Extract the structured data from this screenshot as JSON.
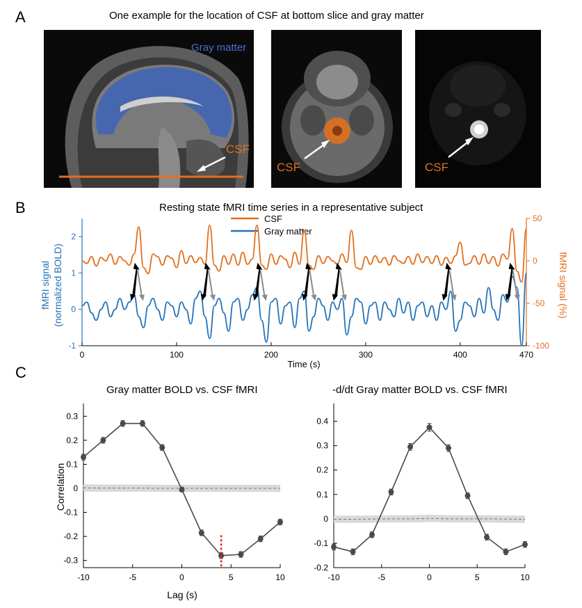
{
  "panelA": {
    "letter": "A",
    "title": "One example for the location of CSF at bottom slice and gray matter",
    "label_gray_matter": "Gray matter",
    "label_csf_sag": "CSF",
    "label_csf_axial": "CSF",
    "label_csf_func": "CSF",
    "colors": {
      "gray_matter": "#3d63b8",
      "csf": "#e0701f"
    }
  },
  "panelB": {
    "letter": "B",
    "title": "Resting state fMRI time series in a representative subject",
    "legend": [
      "CSF",
      "Gray matter"
    ],
    "xlabel": "Time (s)",
    "ylabel_left_1": "fMRI signal",
    "ylabel_left_2": "(normalized BOLD)",
    "ylabel_right": "fMRI signal (%)",
    "left_ticks": [
      "2",
      "1",
      "0",
      "-1"
    ],
    "right_ticks": [
      "50",
      "0",
      "-50",
      "-100"
    ],
    "x_ticks": [
      "0",
      "100",
      "200",
      "300",
      "400",
      "470"
    ],
    "colors": {
      "csf": "#e0701f",
      "gray_matter": "#2372b8"
    }
  },
  "panelC": {
    "letter": "C",
    "left_title": "Gray matter BOLD vs. CSF fMRI",
    "right_title": "-d/dt Gray matter BOLD vs. CSF fMRI",
    "ylabel": "Correlation",
    "xlabel": "Lag (s)",
    "left_y_ticks": [
      "0.3",
      "0.2",
      "0.1",
      "0",
      "-0.1",
      "-0.2",
      "-0.3"
    ],
    "right_y_ticks": [
      "0.4",
      "0.3",
      "0.2",
      "0.1",
      "0",
      "-0.1",
      "-0.2"
    ],
    "x_ticks": [
      "-10",
      "-5",
      "0",
      "5",
      "10"
    ]
  },
  "chart_data": [
    {
      "type": "line",
      "title": "Resting state fMRI time series in a representative subject",
      "xlabel": "Time (s)",
      "ylabel": "fMRI signal (normalized BOLD)",
      "xlim": [
        0,
        470
      ],
      "ylim": [
        -1,
        2.5
      ],
      "y2label": "fMRI signal (%)",
      "y2lim": [
        -100,
        50
      ],
      "series": [
        {
          "name": "CSF",
          "axis": "right",
          "x": [
            0,
            5,
            10,
            15,
            20,
            25,
            30,
            35,
            40,
            45,
            50,
            55,
            60,
            65,
            70,
            75,
            80,
            85,
            90,
            95,
            100,
            105,
            110,
            115,
            120,
            125,
            130,
            135,
            140,
            145,
            150,
            155,
            160,
            165,
            170,
            175,
            180,
            185,
            190,
            195,
            200,
            205,
            210,
            215,
            220,
            225,
            230,
            235,
            240,
            245,
            250,
            255,
            260,
            265,
            270,
            275,
            280,
            285,
            290,
            295,
            300,
            305,
            310,
            315,
            320,
            325,
            330,
            335,
            340,
            345,
            350,
            355,
            360,
            365,
            370,
            375,
            380,
            385,
            390,
            395,
            400,
            405,
            410,
            415,
            420,
            425,
            430,
            435,
            440,
            445,
            450,
            455,
            460,
            465,
            470
          ],
          "values": [
            0,
            -3,
            5,
            -6,
            4,
            0,
            8,
            -4,
            5,
            0,
            -5,
            8,
            40,
            -8,
            -15,
            8,
            5,
            -5,
            6,
            3,
            -8,
            12,
            -3,
            6,
            -2,
            4,
            -4,
            42,
            -5,
            -12,
            6,
            -4,
            8,
            -5,
            10,
            -4,
            2,
            42,
            -5,
            -10,
            8,
            -4,
            6,
            2,
            -8,
            10,
            -4,
            36,
            -5,
            -10,
            6,
            -3,
            5,
            0,
            -4,
            8,
            -2,
            36,
            -8,
            -10,
            5,
            -4,
            6,
            -2,
            4,
            -5,
            6,
            0,
            -3,
            5,
            -4,
            8,
            -2,
            5,
            -3,
            6,
            -5,
            4,
            -3,
            6,
            22,
            -5,
            -3,
            6,
            -4,
            8,
            -3,
            5,
            -6,
            8,
            2,
            38,
            -12,
            -25,
            38
          ]
        },
        {
          "name": "Gray matter",
          "axis": "left",
          "x": [
            0,
            5,
            10,
            15,
            20,
            25,
            30,
            35,
            40,
            45,
            50,
            55,
            60,
            65,
            70,
            75,
            80,
            85,
            90,
            95,
            100,
            105,
            110,
            115,
            120,
            125,
            130,
            135,
            140,
            145,
            150,
            155,
            160,
            165,
            170,
            175,
            180,
            185,
            190,
            195,
            200,
            205,
            210,
            215,
            220,
            225,
            230,
            235,
            240,
            245,
            250,
            255,
            260,
            265,
            270,
            275,
            280,
            285,
            290,
            295,
            300,
            305,
            310,
            315,
            320,
            325,
            330,
            335,
            340,
            345,
            350,
            355,
            360,
            365,
            370,
            375,
            380,
            385,
            390,
            395,
            400,
            405,
            410,
            415,
            420,
            425,
            430,
            435,
            440,
            445,
            450,
            455,
            460,
            465,
            470
          ],
          "values": [
            0.1,
            0.2,
            -0.1,
            -0.3,
            0,
            0.2,
            -0.2,
            0,
            0.3,
            0,
            0.2,
            0.4,
            -0.2,
            -0.5,
            0.1,
            0.3,
            0,
            -0.3,
            0.2,
            0.1,
            -0.2,
            0.2,
            0,
            -0.4,
            0.3,
            0.5,
            -0.2,
            -0.8,
            0.1,
            0.3,
            -0.1,
            -0.6,
            0.2,
            0.3,
            -0.3,
            0,
            0.4,
            0.6,
            -0.3,
            -0.9,
            0.2,
            0.3,
            -0.4,
            0.1,
            0.2,
            -0.5,
            0.3,
            0.5,
            -0.6,
            -0.2,
            0.3,
            0.1,
            -0.3,
            0.2,
            0,
            0.3,
            -0.7,
            -0.2,
            0.3,
            0.2,
            -0.4,
            0.1,
            0.2,
            -0.3,
            0.2,
            0,
            -0.2,
            0.3,
            -0.1,
            0.2,
            -0.3,
            0.1,
            0.2,
            -0.2,
            0.1,
            -0.3,
            0.2,
            0,
            0.5,
            -0.6,
            -0.3,
            0.2,
            0.1,
            -0.2,
            0.3,
            -0.1,
            0.6,
            0,
            -0.3,
            0.4,
            0.2,
            0.9,
            0.6,
            -1,
            1
          ]
        }
      ]
    },
    {
      "type": "line",
      "title": "Gray matter BOLD vs. CSF fMRI",
      "xlabel": "Lag (s)",
      "ylabel": "Correlation",
      "xlim": [
        -10,
        10
      ],
      "ylim": [
        -0.33,
        0.33
      ],
      "series": [
        {
          "name": "",
          "x": [
            -10,
            -8,
            -6,
            -4,
            -2,
            0,
            2,
            4,
            6,
            8,
            10
          ],
          "values": [
            0.13,
            0.2,
            0.27,
            0.27,
            0.17,
            -0.005,
            -0.185,
            -0.28,
            -0.275,
            -0.21,
            -0.14
          ],
          "errors": [
            0.012,
            0.012,
            0.012,
            0.012,
            0.012,
            0.01,
            0.012,
            0.012,
            0.012,
            0.012,
            0.012
          ]
        },
        {
          "name": "",
          "style": "dashed-null",
          "x": [
            -10,
            -8,
            -6,
            -4,
            -2,
            0,
            2,
            4,
            6,
            8,
            10
          ],
          "values": [
            0.002,
            0.001,
            0.001,
            0.001,
            0,
            0,
            0,
            0,
            0,
            0,
            0
          ],
          "band": 0.015
        }
      ],
      "annotation_lag": 4
    },
    {
      "type": "line",
      "title": "-d/dt Gray matter BOLD vs. CSF fMRI",
      "xlabel": "",
      "ylabel": "",
      "xlim": [
        -10,
        10
      ],
      "ylim": [
        -0.2,
        0.45
      ],
      "series": [
        {
          "name": "",
          "x": [
            -10,
            -8,
            -6,
            -4,
            -2,
            0,
            2,
            4,
            6,
            8,
            10
          ],
          "values": [
            -0.115,
            -0.135,
            -0.065,
            0.11,
            0.295,
            0.375,
            0.29,
            0.095,
            -0.075,
            -0.135,
            -0.105
          ],
          "errors": [
            0.012,
            0.012,
            0.012,
            0.012,
            0.014,
            0.016,
            0.014,
            0.012,
            0.012,
            0.012,
            0.012
          ]
        },
        {
          "name": "",
          "style": "dashed-null",
          "x": [
            -10,
            -8,
            -6,
            -4,
            -2,
            0,
            2,
            4,
            6,
            8,
            10
          ],
          "values": [
            -0.002,
            -0.002,
            -0.001,
            0,
            0,
            0.002,
            0,
            0,
            0,
            -0.001,
            -0.002
          ],
          "band": 0.015
        }
      ]
    }
  ]
}
